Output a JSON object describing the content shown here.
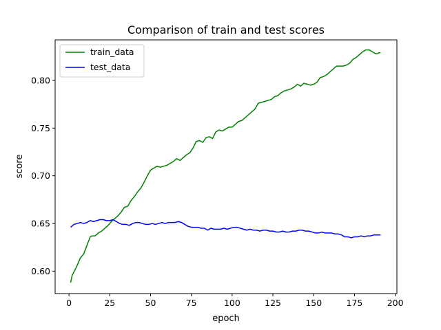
{
  "chart_data": {
    "type": "line",
    "title": "Comparison of train and test scores",
    "xlabel": "epoch",
    "ylabel": "score",
    "xlim": [
      -8.5,
      201
    ],
    "ylim": [
      0.5765,
      0.8425
    ],
    "xticks": [
      0,
      25,
      50,
      75,
      100,
      125,
      150,
      175,
      200
    ],
    "yticks": [
      0.6,
      0.65,
      0.7,
      0.75,
      0.8
    ],
    "xtick_labels": [
      "0",
      "25",
      "50",
      "75",
      "100",
      "125",
      "150",
      "175",
      "200"
    ],
    "ytick_labels": [
      "0.60",
      "0.65",
      "0.70",
      "0.75",
      "0.80"
    ],
    "grid": false,
    "legend_position": "top-left",
    "series": [
      {
        "name": "train_data",
        "color": "#008000",
        "x": [
          1,
          2,
          3,
          5,
          7,
          9,
          11,
          13,
          14,
          16,
          18,
          20,
          22,
          24,
          26,
          28,
          30,
          32,
          34,
          36,
          38,
          40,
          42,
          44,
          46,
          48,
          50,
          52,
          54,
          56,
          58,
          60,
          62,
          64,
          66,
          68,
          70,
          72,
          74,
          76,
          78,
          80,
          82,
          84,
          86,
          88,
          90,
          92,
          94,
          96,
          98,
          100,
          102,
          104,
          106,
          108,
          110,
          112,
          114,
          116,
          118,
          120,
          122,
          124,
          126,
          128,
          130,
          132,
          134,
          136,
          138,
          140,
          142,
          144,
          146,
          148,
          150,
          152,
          154,
          156,
          158,
          160,
          162,
          164,
          166,
          168,
          170,
          172,
          174,
          176,
          178,
          180,
          182,
          184,
          186,
          187,
          188,
          189,
          190,
          191
        ],
        "values": [
          0.588,
          0.596,
          0.599,
          0.606,
          0.614,
          0.618,
          0.627,
          0.636,
          0.637,
          0.637,
          0.64,
          0.642,
          0.645,
          0.648,
          0.652,
          0.655,
          0.658,
          0.662,
          0.667,
          0.668,
          0.674,
          0.678,
          0.683,
          0.687,
          0.693,
          0.7,
          0.706,
          0.708,
          0.71,
          0.709,
          0.71,
          0.711,
          0.713,
          0.715,
          0.718,
          0.716,
          0.719,
          0.722,
          0.724,
          0.729,
          0.736,
          0.737,
          0.735,
          0.74,
          0.741,
          0.739,
          0.746,
          0.748,
          0.747,
          0.749,
          0.751,
          0.751,
          0.754,
          0.757,
          0.758,
          0.761,
          0.764,
          0.767,
          0.77,
          0.776,
          0.777,
          0.778,
          0.779,
          0.78,
          0.783,
          0.784,
          0.787,
          0.789,
          0.79,
          0.791,
          0.793,
          0.796,
          0.794,
          0.797,
          0.796,
          0.795,
          0.796,
          0.798,
          0.803,
          0.804,
          0.806,
          0.809,
          0.812,
          0.815,
          0.815,
          0.815,
          0.816,
          0.818,
          0.822,
          0.824,
          0.827,
          0.83,
          0.832,
          0.832,
          0.83,
          0.829,
          0.828,
          0.828,
          0.829,
          0.829
        ]
      },
      {
        "name": "test_data",
        "color": "#0000ff",
        "x": [
          1,
          3,
          5,
          7,
          9,
          11,
          13,
          15,
          17,
          19,
          21,
          23,
          25,
          27,
          29,
          31,
          33,
          35,
          37,
          39,
          41,
          43,
          45,
          47,
          49,
          51,
          53,
          55,
          57,
          59,
          61,
          63,
          65,
          67,
          69,
          71,
          73,
          75,
          77,
          79,
          81,
          83,
          85,
          87,
          89,
          91,
          93,
          95,
          97,
          99,
          101,
          103,
          105,
          107,
          109,
          111,
          113,
          115,
          117,
          119,
          121,
          123,
          125,
          127,
          129,
          131,
          133,
          135,
          137,
          139,
          141,
          143,
          145,
          147,
          149,
          151,
          153,
          155,
          157,
          159,
          161,
          163,
          165,
          167,
          169,
          171,
          173,
          175,
          177,
          179,
          181,
          183,
          185,
          187,
          189,
          191
        ],
        "values": [
          0.646,
          0.649,
          0.65,
          0.651,
          0.65,
          0.651,
          0.653,
          0.652,
          0.653,
          0.654,
          0.654,
          0.653,
          0.653,
          0.654,
          0.652,
          0.65,
          0.649,
          0.649,
          0.648,
          0.65,
          0.651,
          0.651,
          0.65,
          0.649,
          0.649,
          0.65,
          0.649,
          0.65,
          0.651,
          0.65,
          0.651,
          0.651,
          0.651,
          0.652,
          0.651,
          0.649,
          0.647,
          0.646,
          0.646,
          0.646,
          0.645,
          0.645,
          0.643,
          0.645,
          0.644,
          0.644,
          0.644,
          0.645,
          0.644,
          0.645,
          0.646,
          0.646,
          0.645,
          0.644,
          0.643,
          0.644,
          0.643,
          0.643,
          0.642,
          0.643,
          0.643,
          0.642,
          0.642,
          0.641,
          0.641,
          0.642,
          0.641,
          0.641,
          0.642,
          0.642,
          0.643,
          0.643,
          0.642,
          0.642,
          0.641,
          0.64,
          0.64,
          0.641,
          0.64,
          0.64,
          0.64,
          0.639,
          0.639,
          0.638,
          0.636,
          0.636,
          0.635,
          0.636,
          0.636,
          0.637,
          0.636,
          0.637,
          0.637,
          0.638,
          0.638,
          0.638
        ]
      }
    ]
  }
}
